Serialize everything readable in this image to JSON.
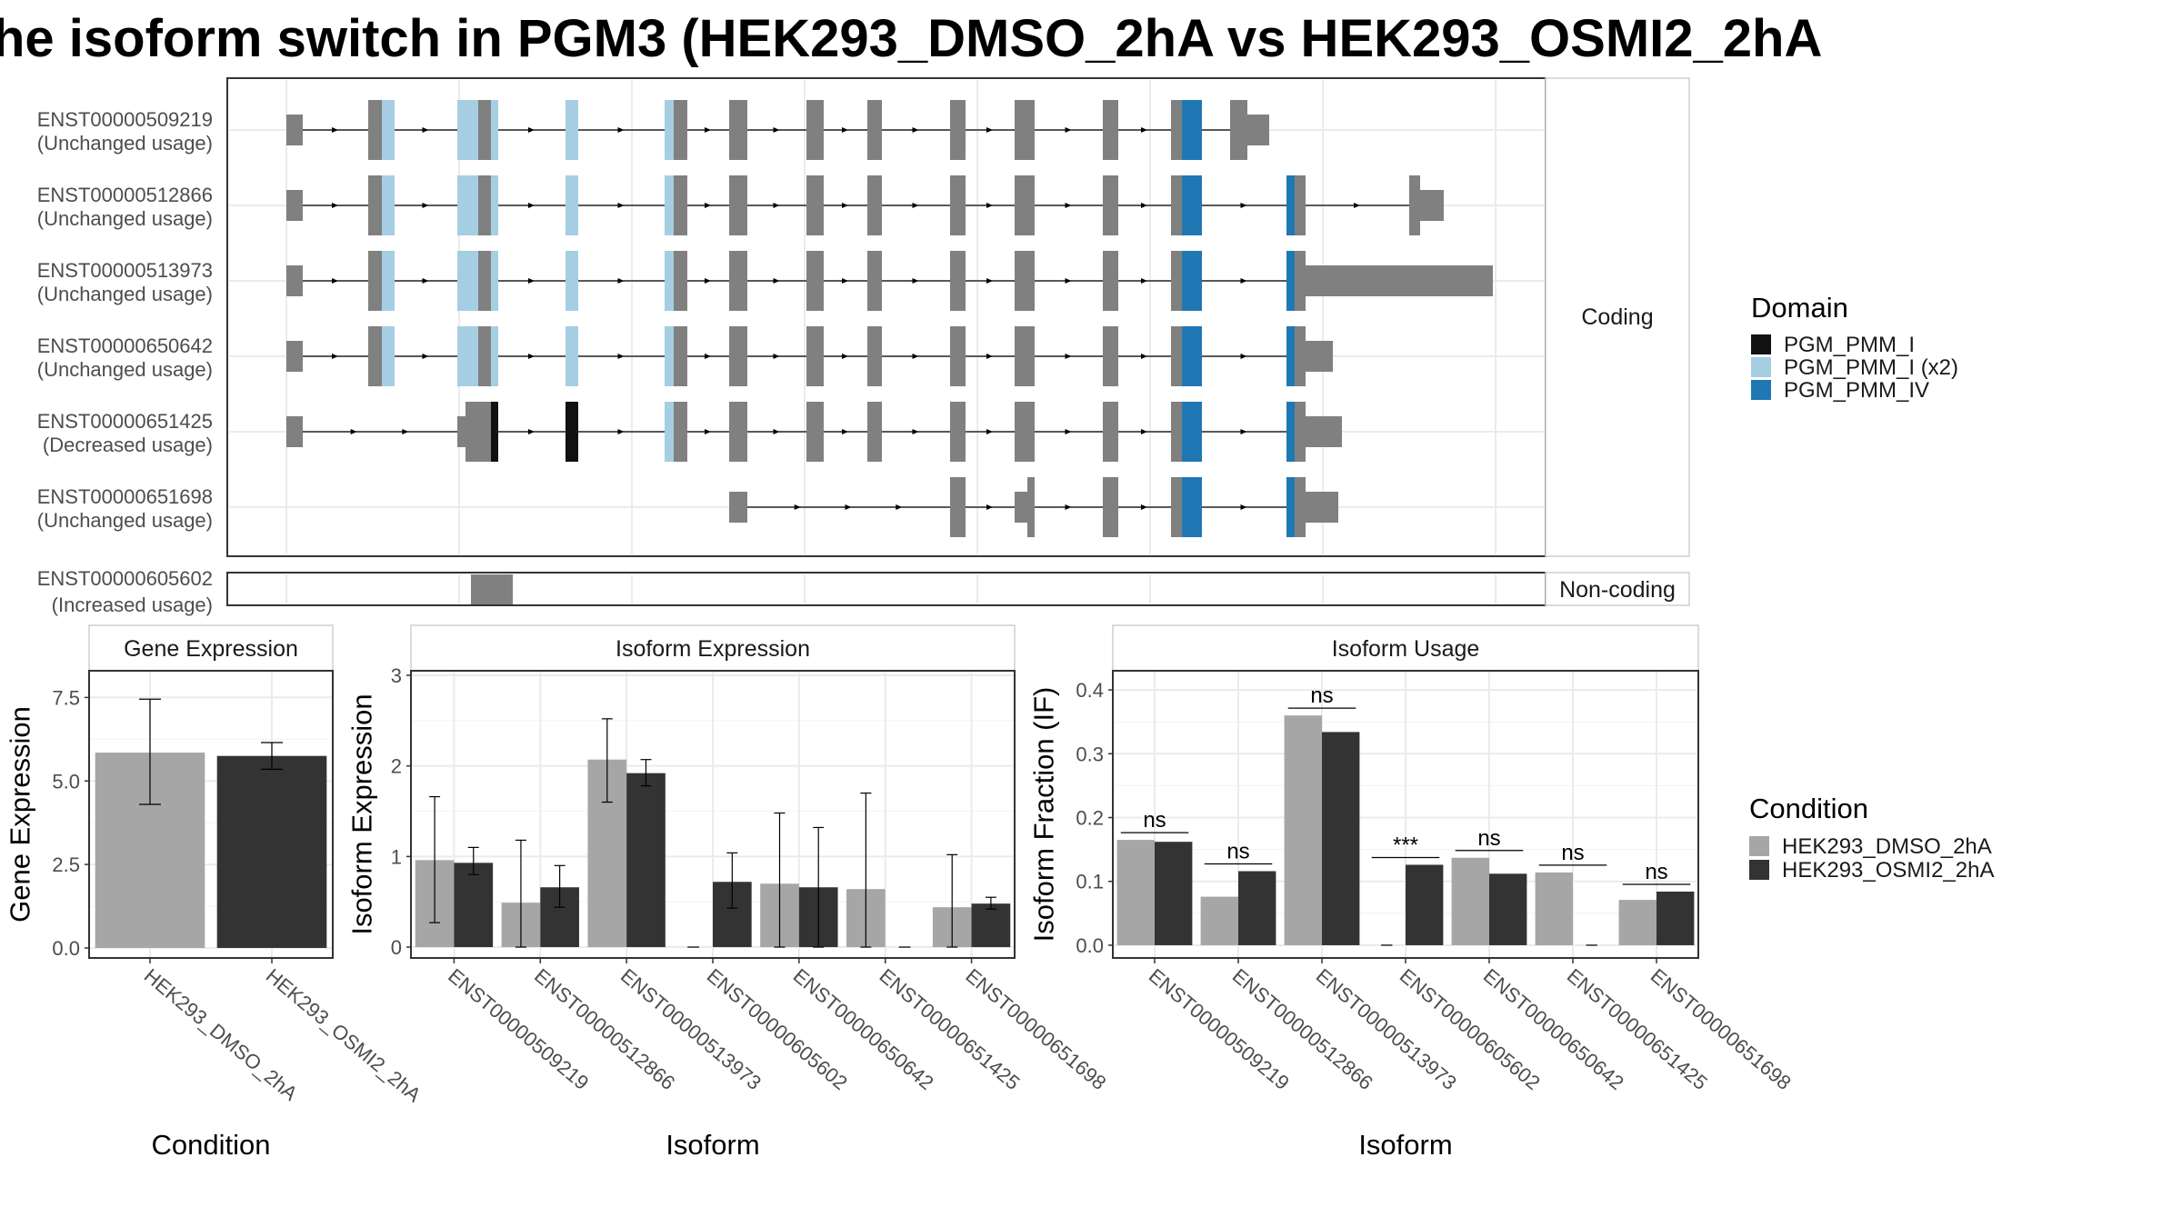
{
  "title": "he isoform switch in PGM3 (HEK293_DMSO_2hA vs HEK293_OSMI2_2hA",
  "colors": {
    "exon": "#808080",
    "domain_PGM_PMM_I": "#111111",
    "domain_PGM_PMM_I_x2": "#a6cee3",
    "domain_PGM_PMM_IV": "#1f78b4",
    "dmso": "#a6a6a6",
    "osmi": "#333333",
    "grid": "#ebebeb",
    "strip_bg": "#ffffff"
  },
  "transcripts": {
    "coding_strip": "Coding",
    "noncoding_strip": "Non-coding",
    "coding": [
      {
        "id": "ENST00000509219",
        "status": "(Unchanged usage)"
      },
      {
        "id": "ENST00000512866",
        "status": "(Unchanged usage)"
      },
      {
        "id": "ENST00000513973",
        "status": "(Unchanged usage)"
      },
      {
        "id": "ENST00000650642",
        "status": "(Unchanged usage)"
      },
      {
        "id": "ENST00000651425",
        "status": "(Decreased usage)"
      },
      {
        "id": "ENST00000651698",
        "status": "(Unchanged usage)"
      }
    ],
    "noncoding": [
      {
        "id": "ENST00000605602",
        "status": "(Increased usage)"
      }
    ]
  },
  "legend_domain": {
    "title": "Domain",
    "items": [
      {
        "label": "PGM_PMM_I",
        "color": "#111111"
      },
      {
        "label": "PGM_PMM_I (x2)",
        "color": "#a6cee3"
      },
      {
        "label": "PGM_PMM_IV",
        "color": "#1f78b4"
      }
    ]
  },
  "legend_condition": {
    "title": "Condition",
    "items": [
      {
        "label": "HEK293_DMSO_2hA",
        "color": "#a6a6a6"
      },
      {
        "label": "HEK293_OSMI2_2hA",
        "color": "#333333"
      }
    ]
  },
  "chart_data": [
    {
      "type": "bar",
      "title": "Gene Expression",
      "xlabel": "Condition",
      "ylabel": "Gene Expression",
      "categories": [
        "HEK293_DMSO_2hA",
        "HEK293_OSMI2_2hA"
      ],
      "values": [
        5.85,
        5.75
      ],
      "error_low": [
        4.3,
        5.35
      ],
      "error_high": [
        7.45,
        6.15
      ],
      "ylim": [
        -0.3,
        8.3
      ],
      "yticks": [
        "0.0",
        "2.5",
        "5.0",
        "7.5"
      ],
      "ytick_values": [
        0,
        2.5,
        5,
        7.5
      ]
    },
    {
      "type": "bar",
      "title": "Isoform Expression",
      "xlabel": "Isoform",
      "ylabel": "Isoform Expression",
      "categories": [
        "ENST00000509219",
        "ENST00000512866",
        "ENST00000513973",
        "ENST00000605602",
        "ENST00000650642",
        "ENST00000651425",
        "ENST00000651698"
      ],
      "series": [
        {
          "name": "HEK293_DMSO_2hA",
          "values": [
            0.96,
            0.49,
            2.07,
            0.0,
            0.7,
            0.64,
            0.44
          ],
          "error_low": [
            0.27,
            0.0,
            1.6,
            0.0,
            0.0,
            0.0,
            0.0
          ],
          "error_high": [
            1.66,
            1.18,
            2.52,
            0.0,
            1.48,
            1.7,
            1.02
          ]
        },
        {
          "name": "HEK293_OSMI2_2hA",
          "values": [
            0.93,
            0.66,
            1.92,
            0.72,
            0.66,
            0.0,
            0.48
          ],
          "error_low": [
            0.8,
            0.44,
            1.78,
            0.43,
            0.0,
            0.0,
            0.42
          ],
          "error_high": [
            1.1,
            0.9,
            2.07,
            1.04,
            1.32,
            0.0,
            0.55
          ]
        }
      ],
      "ylim": [
        -0.12,
        3.05
      ],
      "yticks": [
        "0",
        "1",
        "2",
        "3"
      ],
      "ytick_values": [
        0,
        1,
        2,
        3
      ]
    },
    {
      "type": "bar",
      "title": "Isoform Usage",
      "xlabel": "Isoform",
      "ylabel": "Isoform Fraction (IF)",
      "categories": [
        "ENST00000509219",
        "ENST00000512866",
        "ENST00000513973",
        "ENST00000605602",
        "ENST00000650642",
        "ENST00000651425",
        "ENST00000651698"
      ],
      "series": [
        {
          "name": "HEK293_DMSO_2hA",
          "values": [
            0.165,
            0.076,
            0.36,
            0.0,
            0.137,
            0.114,
            0.071
          ]
        },
        {
          "name": "HEK293_OSMI2_2hA",
          "values": [
            0.162,
            0.116,
            0.334,
            0.126,
            0.112,
            0.0,
            0.084
          ]
        }
      ],
      "significance": [
        "ns",
        "ns",
        "ns",
        "***",
        "ns",
        "ns",
        "ns"
      ],
      "ylim": [
        -0.02,
        0.43
      ],
      "yticks": [
        "0.0",
        "0.1",
        "0.2",
        "0.3",
        "0.4"
      ],
      "ytick_values": [
        0,
        0.1,
        0.2,
        0.3,
        0.4
      ]
    }
  ]
}
